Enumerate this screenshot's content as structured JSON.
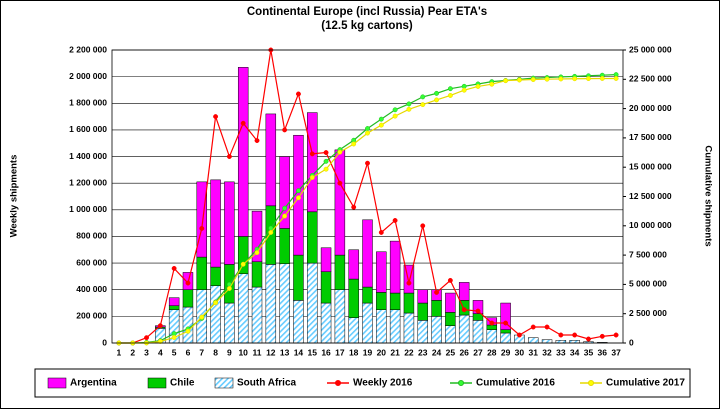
{
  "chart_data": {
    "type": "bar",
    "title": "Continental Europe (incl Russia) Pear ETA's",
    "subtitle": "(12.5 kg cartons)",
    "y_label": "Weekly shipments",
    "y2_label": "Cumulative shipments",
    "categories": [
      "1",
      "2",
      "3",
      "4",
      "5",
      "6",
      "7",
      "8",
      "9",
      "10",
      "11",
      "12",
      "13",
      "14",
      "15",
      "16",
      "17",
      "18",
      "19",
      "20",
      "21",
      "22",
      "23",
      "24",
      "25",
      "26",
      "27",
      "28",
      "29",
      "30",
      "31",
      "32",
      "33",
      "34",
      "35",
      "36",
      "37"
    ],
    "ylim": [
      0,
      2200000
    ],
    "yticks": [
      0,
      {
        "value": 200000,
        "label": "200 000"
      },
      {
        "value": 400000,
        "label": "400 000"
      },
      {
        "value": 600000,
        "label": "600 000"
      },
      {
        "value": 800000,
        "label": "800 000"
      },
      {
        "value": 1000000,
        "label": "1 000 000"
      },
      {
        "value": 1200000,
        "label": "1 200 000"
      },
      {
        "value": 1400000,
        "label": "1 400 000"
      },
      {
        "value": 1600000,
        "label": "1 600 000"
      },
      {
        "value": 1800000,
        "label": "1 800 000"
      },
      {
        "value": 2000000,
        "label": "2 000 000"
      },
      {
        "value": 2200000,
        "label": "2 200 000"
      }
    ],
    "y2lim": [
      0,
      25000000
    ],
    "y2ticks": [
      0,
      {
        "value": 2500000,
        "label": "2 500 000"
      },
      {
        "value": 5000000,
        "label": "5 000 000"
      },
      {
        "value": 7500000,
        "label": "7 500 000"
      },
      {
        "value": 10000000,
        "label": "10 000 000"
      },
      {
        "value": 12500000,
        "label": "12 500 000"
      },
      {
        "value": 15000000,
        "label": "15 000 000"
      },
      {
        "value": 17500000,
        "label": "17 500 000"
      },
      {
        "value": 20000000,
        "label": "20 000 000"
      },
      {
        "value": 22500000,
        "label": "22 500 000"
      },
      {
        "value": 25000000,
        "label": "25 000 000"
      }
    ],
    "grid": true,
    "legend": "bottom",
    "series": [
      {
        "name": "Argentina",
        "type": "bar",
        "color": "#ff00ff",
        "values": [
          0,
          0,
          0,
          10000,
          60000,
          130000,
          565000,
          655000,
          620000,
          1270000,
          380000,
          690000,
          540000,
          900000,
          745000,
          180000,
          790000,
          220000,
          505000,
          305000,
          390000,
          210000,
          100000,
          80000,
          145000,
          135000,
          100000,
          55000,
          200000,
          0,
          0,
          0,
          0,
          0,
          0,
          0,
          0
        ]
      },
      {
        "name": "Chile",
        "type": "bar",
        "color": "#00cc00",
        "values": [
          0,
          0,
          0,
          10000,
          30000,
          130000,
          245000,
          140000,
          290000,
          280000,
          190000,
          440000,
          265000,
          340000,
          385000,
          235000,
          260000,
          290000,
          120000,
          130000,
          125000,
          150000,
          130000,
          120000,
          100000,
          110000,
          50000,
          35000,
          25000,
          0,
          0,
          0,
          0,
          0,
          0,
          0,
          0
        ]
      },
      {
        "name": "South Africa",
        "type": "bar",
        "color": "#66ccff",
        "hatch": true,
        "values": [
          0,
          0,
          0,
          110000,
          250000,
          270000,
          400000,
          430000,
          300000,
          520000,
          420000,
          590000,
          595000,
          320000,
          600000,
          300000,
          400000,
          190000,
          300000,
          250000,
          250000,
          225000,
          170000,
          200000,
          130000,
          210000,
          170000,
          100000,
          75000,
          60000,
          40000,
          25000,
          20000,
          20000,
          10000,
          5000,
          0
        ]
      },
      {
        "name": "Weekly 2016",
        "type": "line",
        "color": "#ff0000",
        "values": [
          0,
          0,
          40000,
          130000,
          560000,
          450000,
          860000,
          1700000,
          1400000,
          1650000,
          1520000,
          2200000,
          1600000,
          1870000,
          1420000,
          1430000,
          1200000,
          1020000,
          1350000,
          830000,
          920000,
          450000,
          880000,
          380000,
          470000,
          250000,
          240000,
          150000,
          150000,
          60000,
          120000,
          120000,
          60000,
          60000,
          30000,
          50000,
          60000
        ]
      },
      {
        "name": "Cumulative 2016",
        "type": "line",
        "axis": "y2",
        "color": "#33ff33",
        "line_color": "#22bb22",
        "values": [
          0,
          0,
          50000,
          200000,
          800000,
          1200000,
          2100000,
          3500000,
          5000000,
          6700000,
          8000000,
          9800000,
          11500000,
          13000000,
          14300000,
          15500000,
          16500000,
          17300000,
          18300000,
          19100000,
          19900000,
          20400000,
          21000000,
          21300000,
          21700000,
          21900000,
          22100000,
          22300000,
          22400000,
          22500000,
          22600000,
          22650000,
          22700000,
          22750000,
          22800000,
          22850000,
          22900000
        ]
      },
      {
        "name": "Cumulative 2017",
        "type": "line",
        "axis": "y2",
        "color": "#ffff00",
        "line_color": "#e6d800",
        "values": [
          0,
          0,
          0,
          130000,
          470000,
          1000000,
          2210000,
          3440000,
          4650000,
          6720000,
          7710000,
          9430000,
          10830000,
          12390000,
          14120000,
          14830000,
          16280000,
          16980000,
          17910000,
          18590000,
          19360000,
          19940000,
          20340000,
          20740000,
          21120000,
          21570000,
          21890000,
          22080000,
          22380000,
          22440000,
          22480000,
          22510000,
          22530000,
          22550000,
          22560000,
          22570000,
          22570000
        ]
      }
    ]
  }
}
